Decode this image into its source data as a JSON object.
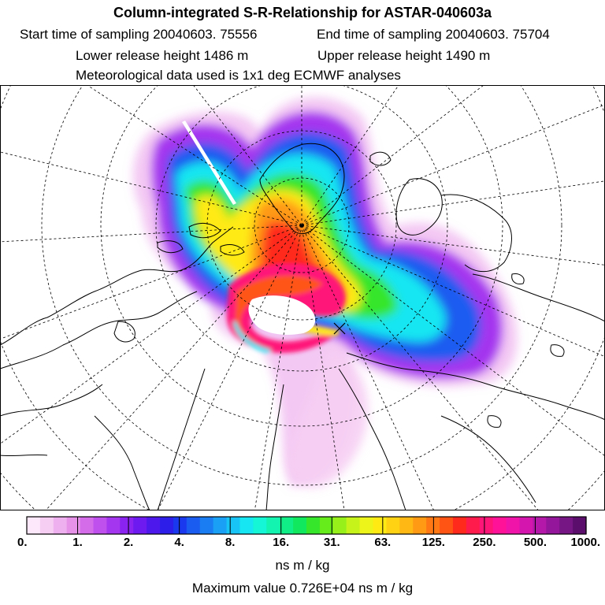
{
  "title": "Column-integrated S-R-Relationship for ASTAR-040603a",
  "header": {
    "start_time": "Start time of sampling 20040603. 75556",
    "end_time": "End time of sampling 20040603. 75704",
    "lower_release": "Lower release height 1486 m",
    "upper_release": "Upper release height 1490 m",
    "met_data": "Meteorological data used is 1x1 deg ECMWF analyses"
  },
  "colorbar": {
    "tick_labels": [
      "0.",
      "1.",
      "2.",
      "4.",
      "8.",
      "16.",
      "31.",
      "63.",
      "125.",
      "250.",
      "500.",
      "1000."
    ],
    "colors": [
      "#fde8fb",
      "#f6cdf3",
      "#eeb0ee",
      "#e692e9",
      "#d46ce9",
      "#c050ee",
      "#a436ef",
      "#8a22f0",
      "#6c1af0",
      "#4c18ec",
      "#2e1eea",
      "#1a38ee",
      "#1a5cf0",
      "#1a7ef2",
      "#1aa0f4",
      "#18c4f6",
      "#16e6f2",
      "#14f6d6",
      "#12f4b0",
      "#10ee88",
      "#12e85e",
      "#36e62a",
      "#66ec1a",
      "#98f01a",
      "#c6f41a",
      "#ecf41a",
      "#ffea14",
      "#ffd214",
      "#ffb814",
      "#ff9a14",
      "#ff7814",
      "#ff5414",
      "#ff2a1c",
      "#ff1c4c",
      "#ff1478",
      "#ff1298",
      "#f014a8",
      "#d416ae",
      "#b418a8",
      "#94169a",
      "#761684",
      "#5c0e6c"
    ],
    "unit_label": "ns m / kg"
  },
  "max_value_label": "Maximum value  0.726E+04 ns m / kg"
}
